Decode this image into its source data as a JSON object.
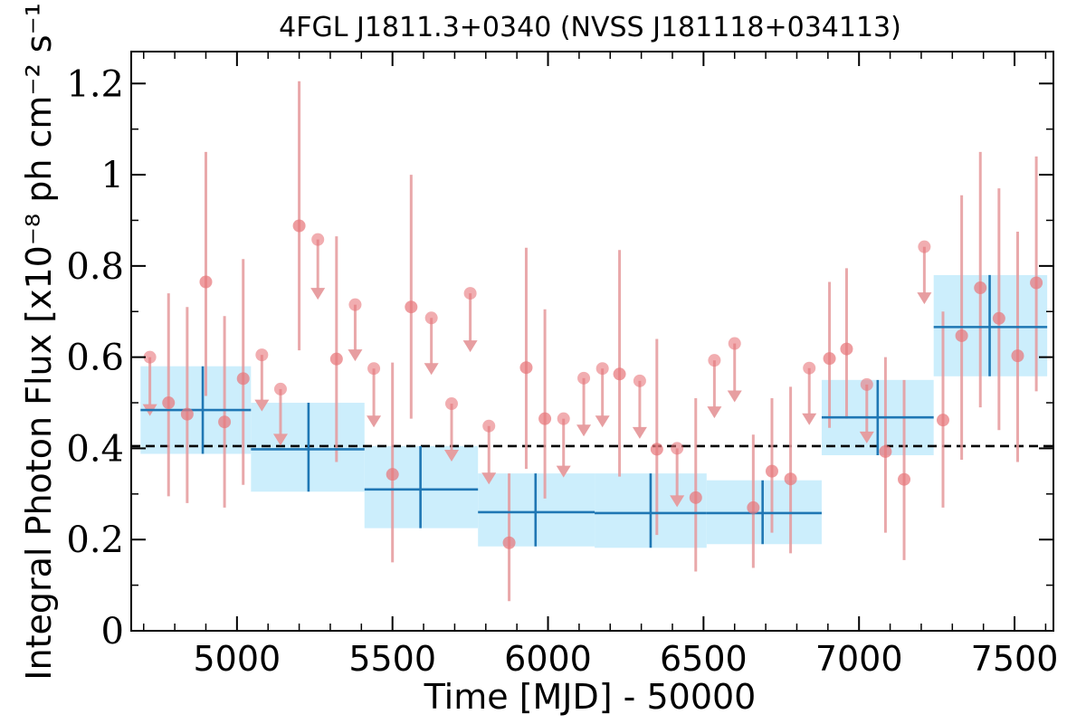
{
  "chart_data": {
    "type": "scatter",
    "title": "4FGL J1811.3+0340 (NVSS J181118+034113)",
    "xlabel": "Time [MJD] - 50000",
    "ylabel": "Integral Photon Flux [x10⁻⁸ ph cm⁻² s⁻¹]",
    "xlim": [
      4660,
      7625
    ],
    "ylim": [
      0,
      1.27
    ],
    "x_ticks": [
      "5000",
      "5500",
      "6000",
      "6500",
      "7000",
      "7500"
    ],
    "y_ticks": [
      "0",
      "0.2",
      "0.4",
      "0.6",
      "0.8",
      "1",
      "1.2"
    ],
    "x_tick_values": [
      5000,
      5500,
      6000,
      6500,
      7000,
      7500
    ],
    "y_tick_values": [
      0,
      0.2,
      0.4,
      0.6,
      0.8,
      1.0,
      1.2
    ],
    "mean_flux": 0.405,
    "colors": {
      "points": "#e8777c",
      "errorbars": "#e6999c",
      "blocks_fill": "#cceefc",
      "blocks_line": "#1f77b4",
      "mean_line": "#000000"
    },
    "detections": [
      {
        "x": 4780,
        "y": 0.5,
        "lo": 0.295,
        "hi": 0.74
      },
      {
        "x": 4840,
        "y": 0.475,
        "lo": 0.28,
        "hi": 0.71
      },
      {
        "x": 4900,
        "y": 0.765,
        "lo": 0.515,
        "hi": 1.05
      },
      {
        "x": 4960,
        "y": 0.458,
        "lo": 0.27,
        "hi": 0.69
      },
      {
        "x": 5020,
        "y": 0.553,
        "lo": 0.32,
        "hi": 0.815
      },
      {
        "x": 5200,
        "y": 0.888,
        "lo": 0.615,
        "hi": 1.205
      },
      {
        "x": 5320,
        "y": 0.596,
        "lo": 0.37,
        "hi": 0.865
      },
      {
        "x": 5500,
        "y": 0.343,
        "lo": 0.15,
        "hi": 0.588
      },
      {
        "x": 5560,
        "y": 0.71,
        "lo": 0.465,
        "hi": 1.0
      },
      {
        "x": 5875,
        "y": 0.193,
        "lo": 0.065,
        "hi": 0.345
      },
      {
        "x": 5930,
        "y": 0.577,
        "lo": 0.355,
        "hi": 0.84
      },
      {
        "x": 5990,
        "y": 0.465,
        "lo": 0.29,
        "hi": 0.705
      },
      {
        "x": 6230,
        "y": 0.563,
        "lo": 0.338,
        "hi": 0.835
      },
      {
        "x": 6350,
        "y": 0.398,
        "lo": 0.21,
        "hi": 0.64
      },
      {
        "x": 6475,
        "y": 0.292,
        "lo": 0.13,
        "hi": 0.51
      },
      {
        "x": 6660,
        "y": 0.27,
        "lo": 0.138,
        "hi": 0.43
      },
      {
        "x": 6720,
        "y": 0.35,
        "lo": 0.215,
        "hi": 0.51
      },
      {
        "x": 6780,
        "y": 0.333,
        "lo": 0.17,
        "hi": 0.535
      },
      {
        "x": 6905,
        "y": 0.597,
        "lo": 0.445,
        "hi": 0.765
      },
      {
        "x": 6960,
        "y": 0.618,
        "lo": 0.465,
        "hi": 0.795
      },
      {
        "x": 7085,
        "y": 0.393,
        "lo": 0.215,
        "hi": 0.6
      },
      {
        "x": 7145,
        "y": 0.332,
        "lo": 0.155,
        "hi": 0.55
      },
      {
        "x": 7270,
        "y": 0.462,
        "lo": 0.27,
        "hi": 0.7
      },
      {
        "x": 7330,
        "y": 0.647,
        "lo": 0.375,
        "hi": 0.955
      },
      {
        "x": 7390,
        "y": 0.752,
        "lo": 0.49,
        "hi": 1.05
      },
      {
        "x": 7450,
        "y": 0.685,
        "lo": 0.44,
        "hi": 0.97
      },
      {
        "x": 7510,
        "y": 0.603,
        "lo": 0.37,
        "hi": 0.875
      },
      {
        "x": 7570,
        "y": 0.763,
        "lo": 0.525,
        "hi": 1.04
      }
    ],
    "upper_limits": [
      {
        "x": 4720,
        "y": 0.6,
        "arrow_to": 0.475
      },
      {
        "x": 5080,
        "y": 0.605,
        "arrow_to": 0.485
      },
      {
        "x": 5140,
        "y": 0.53,
        "arrow_to": 0.41
      },
      {
        "x": 5260,
        "y": 0.858,
        "arrow_to": 0.73
      },
      {
        "x": 5380,
        "y": 0.715,
        "arrow_to": 0.595
      },
      {
        "x": 5440,
        "y": 0.575,
        "arrow_to": 0.45
      },
      {
        "x": 5625,
        "y": 0.686,
        "arrow_to": 0.565
      },
      {
        "x": 5690,
        "y": 0.498,
        "arrow_to": 0.375
      },
      {
        "x": 5750,
        "y": 0.74,
        "arrow_to": 0.615
      },
      {
        "x": 5810,
        "y": 0.449,
        "arrow_to": 0.325
      },
      {
        "x": 6050,
        "y": 0.465,
        "arrow_to": 0.34
      },
      {
        "x": 6115,
        "y": 0.554,
        "arrow_to": 0.43
      },
      {
        "x": 6175,
        "y": 0.575,
        "arrow_to": 0.45
      },
      {
        "x": 6295,
        "y": 0.548,
        "arrow_to": 0.425
      },
      {
        "x": 6415,
        "y": 0.4,
        "arrow_to": 0.275
      },
      {
        "x": 6535,
        "y": 0.593,
        "arrow_to": 0.47
      },
      {
        "x": 6600,
        "y": 0.63,
        "arrow_to": 0.505
      },
      {
        "x": 6840,
        "y": 0.576,
        "arrow_to": 0.455
      },
      {
        "x": 7025,
        "y": 0.54,
        "arrow_to": 0.415
      },
      {
        "x": 7210,
        "y": 0.842,
        "arrow_to": 0.72
      }
    ],
    "bayesian_blocks": [
      {
        "x0": 4690,
        "x1": 5045,
        "xc": 4890,
        "y": 0.484,
        "lo": 0.388,
        "hi": 0.58
      },
      {
        "x0": 5045,
        "x1": 5410,
        "xc": 5230,
        "y": 0.398,
        "lo": 0.305,
        "hi": 0.5
      },
      {
        "x0": 5410,
        "x1": 5775,
        "xc": 5590,
        "y": 0.31,
        "lo": 0.225,
        "hi": 0.405
      },
      {
        "x0": 5775,
        "x1": 6150,
        "xc": 5960,
        "y": 0.26,
        "lo": 0.185,
        "hi": 0.345
      },
      {
        "x0": 6150,
        "x1": 6510,
        "xc": 6330,
        "y": 0.258,
        "lo": 0.182,
        "hi": 0.345
      },
      {
        "x0": 6510,
        "x1": 6880,
        "xc": 6690,
        "y": 0.258,
        "lo": 0.19,
        "hi": 0.33
      },
      {
        "x0": 6880,
        "x1": 7240,
        "xc": 7060,
        "y": 0.468,
        "lo": 0.385,
        "hi": 0.55
      },
      {
        "x0": 7240,
        "x1": 7605,
        "xc": 7420,
        "y": 0.666,
        "lo": 0.558,
        "hi": 0.78
      }
    ]
  }
}
